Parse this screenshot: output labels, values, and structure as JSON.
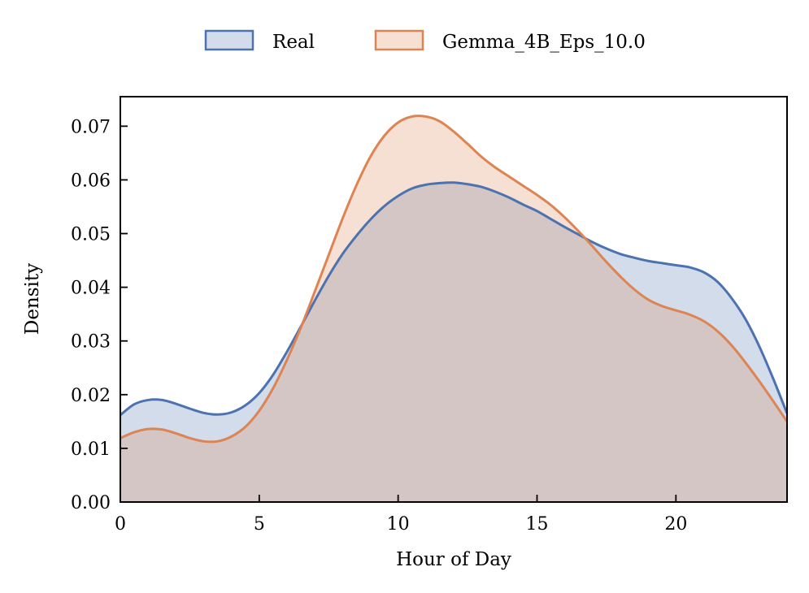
{
  "chart_data": {
    "type": "area",
    "xlabel": "Hour of Day",
    "ylabel": "Density",
    "xlim": [
      0,
      24
    ],
    "ylim": [
      0,
      0.0755
    ],
    "x_ticks": [
      0,
      5,
      10,
      15,
      20
    ],
    "y_ticks": [
      0.0,
      0.01,
      0.02,
      0.03,
      0.04,
      0.05,
      0.06,
      0.07
    ],
    "x_tick_labels": [
      "0",
      "5",
      "10",
      "15",
      "20"
    ],
    "y_tick_labels": [
      "0.00",
      "0.01",
      "0.02",
      "0.03",
      "0.04",
      "0.05",
      "0.06",
      "0.07"
    ],
    "grid": false,
    "legend_position": "top-center",
    "series": [
      {
        "name": "Real",
        "line_color": "#4c72b0",
        "fill_color": "#4c72b0",
        "x": [
          0,
          0.5,
          1.0,
          1.5,
          2,
          2.5,
          3,
          3.5,
          4,
          4.5,
          5,
          5.5,
          6,
          6.5,
          7,
          7.5,
          8,
          8.5,
          9,
          9.5,
          10,
          10.5,
          11,
          11.5,
          12,
          12.5,
          13,
          13.5,
          14,
          14.5,
          15,
          15.5,
          16,
          16.5,
          17,
          17.5,
          18,
          18.5,
          19,
          19.5,
          20,
          20.5,
          21,
          21.5,
          22,
          22.5,
          23,
          23.5,
          24
        ],
        "y": [
          0.0162,
          0.0182,
          0.019,
          0.019,
          0.0183,
          0.0174,
          0.0166,
          0.0163,
          0.0167,
          0.018,
          0.0203,
          0.0237,
          0.028,
          0.0327,
          0.0375,
          0.0421,
          0.0462,
          0.0496,
          0.0526,
          0.0551,
          0.057,
          0.0584,
          0.0591,
          0.0594,
          0.0595,
          0.0592,
          0.0587,
          0.0578,
          0.0567,
          0.0554,
          0.0542,
          0.0527,
          0.0512,
          0.0498,
          0.0484,
          0.0472,
          0.0462,
          0.0455,
          0.0449,
          0.0445,
          0.0441,
          0.0437,
          0.0428,
          0.041,
          0.038,
          0.0341,
          0.029,
          0.023,
          0.0165
        ]
      },
      {
        "name": "Gemma_4B_Eps_10.0",
        "line_color": "#dd8452",
        "fill_color": "#dd8452",
        "x": [
          0,
          0.5,
          1.0,
          1.5,
          2,
          2.5,
          3,
          3.5,
          4,
          4.5,
          5,
          5.5,
          6,
          6.5,
          7,
          7.5,
          8,
          8.5,
          9,
          9.5,
          10,
          10.5,
          11,
          11.5,
          12,
          12.5,
          13,
          13.5,
          14,
          14.5,
          15,
          15.5,
          16,
          16.5,
          17,
          17.5,
          18,
          18.5,
          19,
          19.5,
          20,
          20.5,
          21,
          21.5,
          22,
          22.5,
          23,
          23.5,
          24
        ],
        "y": [
          0.0119,
          0.013,
          0.0136,
          0.0135,
          0.0128,
          0.0119,
          0.0113,
          0.0113,
          0.0122,
          0.014,
          0.017,
          0.0212,
          0.0265,
          0.0325,
          0.0392,
          0.046,
          0.0528,
          0.059,
          0.0643,
          0.0682,
          0.0707,
          0.0718,
          0.0718,
          0.0709,
          0.069,
          0.0667,
          0.0643,
          0.0623,
          0.0606,
          0.0589,
          0.0572,
          0.0553,
          0.053,
          0.0504,
          0.0476,
          0.0447,
          0.042,
          0.0396,
          0.0377,
          0.0365,
          0.0357,
          0.0349,
          0.0337,
          0.0318,
          0.0292,
          0.026,
          0.0225,
          0.0188,
          0.015
        ]
      }
    ]
  }
}
